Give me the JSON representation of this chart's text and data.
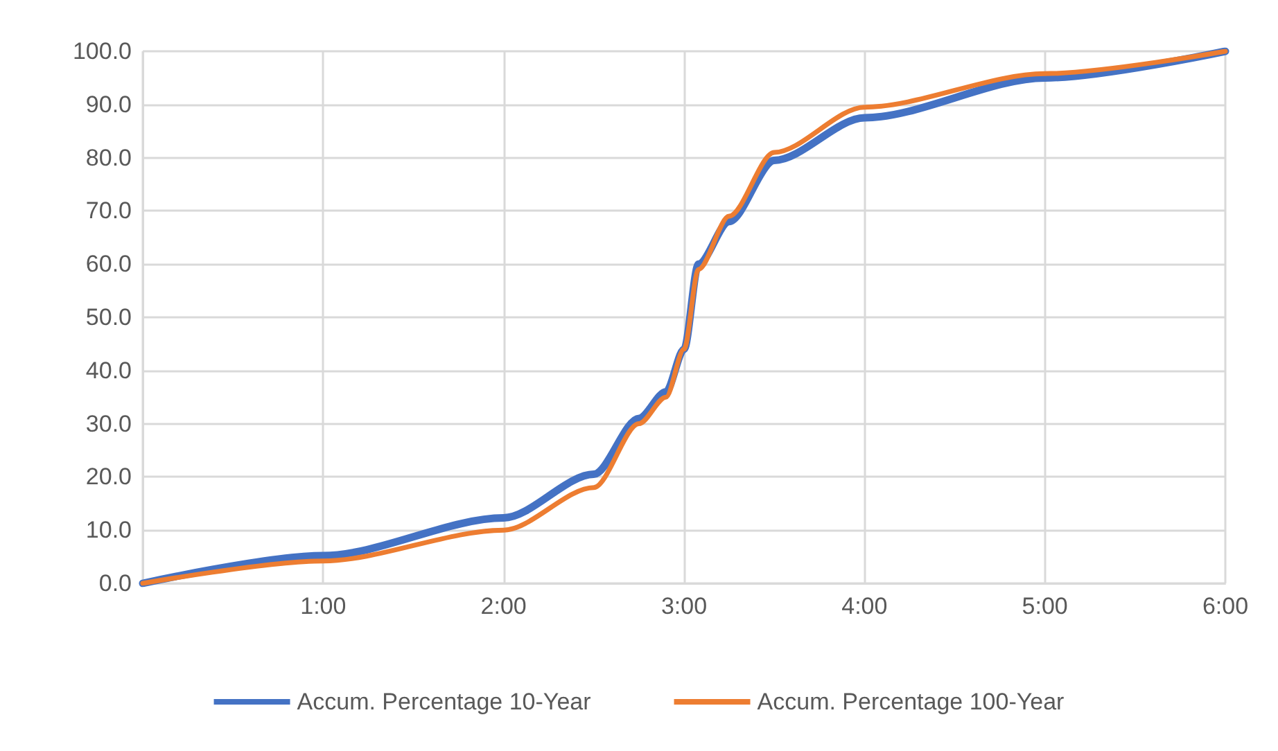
{
  "chart_data": {
    "type": "line",
    "x": [
      0,
      1,
      2,
      2.5,
      2.75,
      2.9,
      3,
      3.08,
      3.25,
      3.5,
      4,
      5,
      6
    ],
    "series": [
      {
        "name": "Accum. Percentage 10-Year",
        "color": "#4472c4",
        "values": [
          0,
          5.2,
          12.3,
          20.5,
          31,
          36,
          44,
          60,
          68,
          79.5,
          87.5,
          95,
          100
        ]
      },
      {
        "name": "Accum. Percentage 100-Year",
        "color": "#ed7d31",
        "values": [
          0,
          4.2,
          10,
          18,
          30,
          35,
          44,
          59,
          69,
          81,
          89.5,
          95.8,
          100
        ]
      }
    ],
    "xlim": [
      0,
      6
    ],
    "xticks": [
      {
        "value": 0,
        "label": null
      },
      {
        "value": 1,
        "label": "1:00"
      },
      {
        "value": 2,
        "label": "2:00"
      },
      {
        "value": 3,
        "label": "3:00"
      },
      {
        "value": 4,
        "label": "4:00"
      },
      {
        "value": 5,
        "label": "5:00"
      },
      {
        "value": 6,
        "label": "6:00"
      }
    ],
    "ylim": [
      0,
      100
    ],
    "yticks": [
      {
        "value": 0,
        "label": "0.0"
      },
      {
        "value": 10,
        "label": "10.0"
      },
      {
        "value": 20,
        "label": "20.0"
      },
      {
        "value": 30,
        "label": "30.0"
      },
      {
        "value": 40,
        "label": "40.0"
      },
      {
        "value": 50,
        "label": "50.0"
      },
      {
        "value": 60,
        "label": "60.0"
      },
      {
        "value": 70,
        "label": "70.0"
      },
      {
        "value": 80,
        "label": "80.0"
      },
      {
        "value": 90,
        "label": "90.0"
      },
      {
        "value": 100,
        "label": "100.0"
      }
    ],
    "grid": true,
    "legend": "bottom",
    "marker": "none",
    "line_style": "solid"
  }
}
